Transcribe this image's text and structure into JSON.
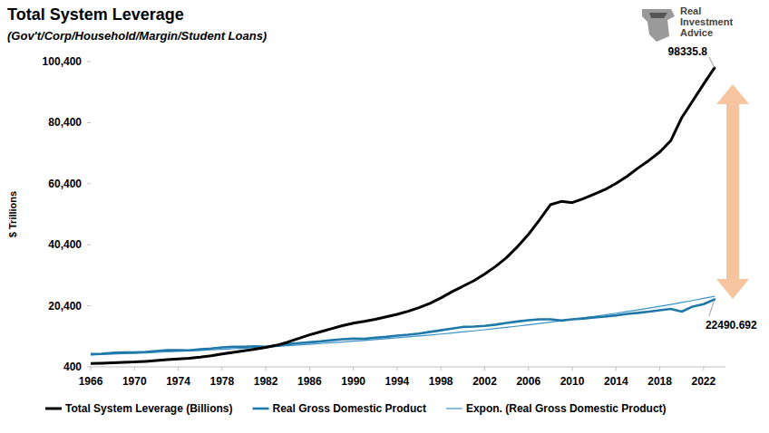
{
  "chart_data": {
    "type": "line",
    "title": "Total System Leverage",
    "subtitle": "(Gov't/Corp/Household/Margin/Student Loans)",
    "y_label": "$ Trillions",
    "logo": "Real Investment Advice",
    "annotations": [
      "98335.8",
      "22490.692"
    ],
    "x": [
      1966,
      1967,
      1968,
      1969,
      1970,
      1971,
      1972,
      1973,
      1974,
      1975,
      1976,
      1977,
      1978,
      1979,
      1980,
      1981,
      1982,
      1983,
      1984,
      1985,
      1986,
      1987,
      1988,
      1989,
      1990,
      1991,
      1992,
      1993,
      1994,
      1995,
      1996,
      1997,
      1998,
      1999,
      2000,
      2001,
      2002,
      2003,
      2004,
      2005,
      2006,
      2007,
      2008,
      2009,
      2010,
      2011,
      2012,
      2013,
      2014,
      2015,
      2016,
      2017,
      2018,
      2019,
      2020,
      2021,
      2022,
      2023
    ],
    "series": [
      {
        "name": "Total System Leverage (Billions)",
        "color": "#000000",
        "line_style": "solid",
        "values": [
          1500,
          1600,
          1750,
          1900,
          2000,
          2200,
          2450,
          2750,
          3000,
          3250,
          3600,
          4050,
          4600,
          5150,
          5650,
          6200,
          6800,
          7500,
          8500,
          9700,
          10900,
          11900,
          12900,
          13900,
          14700,
          15300,
          16000,
          16800,
          17600,
          18600,
          19800,
          21200,
          23000,
          25000,
          26800,
          28600,
          30800,
          33300,
          36200,
          39800,
          43800,
          48500,
          53500,
          54600,
          54200,
          55500,
          57000,
          58500,
          60500,
          62800,
          65500,
          68000,
          70800,
          74500,
          82000,
          87500,
          93000,
          98335.8
        ]
      },
      {
        "name": "Real Gross Domestic Product",
        "color": "#1f78a8",
        "line_style": "solid",
        "values": [
          4600,
          4720,
          4950,
          5100,
          5110,
          5280,
          5560,
          5880,
          5850,
          5830,
          6150,
          6430,
          6790,
          6990,
          6970,
          7140,
          7010,
          7330,
          7850,
          8180,
          8460,
          8750,
          9120,
          9460,
          9640,
          9620,
          9950,
          10230,
          10640,
          10920,
          11330,
          11850,
          12380,
          12950,
          13480,
          13610,
          13840,
          14230,
          14770,
          15270,
          15670,
          16000,
          15990,
          15560,
          15990,
          16240,
          16600,
          16880,
          17270,
          17780,
          18100,
          18510,
          18960,
          19390,
          18500,
          20150,
          20950,
          22490.692
        ]
      },
      {
        "name": "Expon. (Real Gross Domestic Product)",
        "color": "#3a93c8",
        "line_style": "thin",
        "values": [
          4300,
          4430,
          4564,
          4702,
          4844,
          4991,
          5142,
          5297,
          5458,
          5623,
          5793,
          5968,
          6149,
          6335,
          6526,
          6724,
          6927,
          7137,
          7352,
          7575,
          7804,
          8040,
          8283,
          8534,
          8792,
          9058,
          9332,
          9614,
          9905,
          10205,
          10513,
          10831,
          11159,
          11496,
          11844,
          12202,
          12571,
          12951,
          13343,
          13747,
          14163,
          14591,
          15032,
          15487,
          15955,
          16438,
          16935,
          17447,
          17975,
          18519,
          19079,
          19656,
          20250,
          20863,
          21494,
          22144,
          22814,
          23504
        ]
      }
    ],
    "xlim": [
      1966,
      2024
    ],
    "xticks": [
      1966,
      1970,
      1974,
      1978,
      1982,
      1986,
      1990,
      1994,
      1998,
      2002,
      2006,
      2010,
      2014,
      2018,
      2022
    ],
    "ylim": [
      400,
      100400
    ],
    "yticks": [
      {
        "value": 400,
        "label": "400"
      },
      {
        "value": 20400,
        "label": "20,400"
      },
      {
        "value": 40400,
        "label": "40,400"
      },
      {
        "value": 60400,
        "label": "60,400"
      },
      {
        "value": 80400,
        "label": "80,400"
      },
      {
        "value": 100400,
        "label": "100,400"
      }
    ],
    "grid": false,
    "legend": "bottom"
  }
}
